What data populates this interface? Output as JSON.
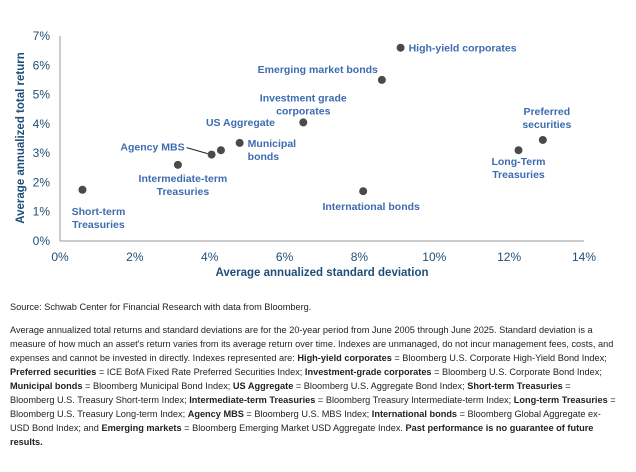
{
  "chart_data": {
    "type": "scatter",
    "xlabel": "Average annualized standard deviation",
    "ylabel": "Average annualized total return",
    "xlim": [
      0,
      14
    ],
    "ylim": [
      0,
      7
    ],
    "x_ticks": [
      "0%",
      "2%",
      "4%",
      "6%",
      "8%",
      "10%",
      "12%",
      "14%"
    ],
    "y_ticks": [
      "0%",
      "1%",
      "2%",
      "3%",
      "4%",
      "5%",
      "6%",
      "7%"
    ],
    "grid": false,
    "point_color": "#4a4a4a",
    "label_color": "#3d6cb0",
    "points": [
      {
        "label": [
          "High-yield corporates"
        ],
        "x": 9.1,
        "y": 6.6
      },
      {
        "label": [
          "Emerging market bonds"
        ],
        "x": 8.6,
        "y": 5.5
      },
      {
        "label": [
          "Investment grade",
          "corporates"
        ],
        "x": 6.5,
        "y": 4.05
      },
      {
        "label": [
          "US Aggregate"
        ],
        "x": 4.3,
        "y": 3.1
      },
      {
        "label": [
          "Municipal",
          "bonds"
        ],
        "x": 4.8,
        "y": 3.35
      },
      {
        "label": [
          "Agency MBS"
        ],
        "x": 4.05,
        "y": 2.95
      },
      {
        "label": [
          "Intermediate-term",
          "Treasuries"
        ],
        "x": 3.15,
        "y": 2.6
      },
      {
        "label": [
          "Short-term",
          "Treasuries"
        ],
        "x": 0.6,
        "y": 1.75
      },
      {
        "label": [
          "International bonds"
        ],
        "x": 8.1,
        "y": 1.7
      },
      {
        "label": [
          "Preferred",
          "securities"
        ],
        "x": 12.9,
        "y": 3.45
      },
      {
        "label": [
          "Long-Term",
          "Treasuries"
        ],
        "x": 12.25,
        "y": 3.1
      }
    ]
  },
  "footer": {
    "source": "Source: Schwab Center for Financial Research with data from Bloomberg.",
    "notes": [
      {
        "t": "Average annualized total returns and standard deviations are for the 20-year period from June 2005 through June 2025. Standard deviation is a measure of how much an asset's return varies from its average return over time. Indexes are unmanaged, do not incur management fees, costs, and expenses and cannot be invested in directly. Indexes represented are: ",
        "b": false
      },
      {
        "t": "High-yield corporates",
        "b": true
      },
      {
        "t": " = Bloomberg U.S. Corporate High-Yield Bond Index; ",
        "b": false
      },
      {
        "t": "Preferred securities",
        "b": true
      },
      {
        "t": " = ICE BofA Fixed Rate Preferred Securities Index; ",
        "b": false
      },
      {
        "t": "Investment-grade corporates",
        "b": true
      },
      {
        "t": " = Bloomberg U.S. Corporate Bond Index; ",
        "b": false
      },
      {
        "t": "Municipal bonds",
        "b": true
      },
      {
        "t": " = Bloomberg Municipal Bond Index; ",
        "b": false
      },
      {
        "t": "US Aggregate",
        "b": true
      },
      {
        "t": " = Bloomberg U.S. Aggregate Bond Index; ",
        "b": false
      },
      {
        "t": "Short-term Treasuries",
        "b": true
      },
      {
        "t": " = Bloomberg U.S. Treasury Short-term Index; ",
        "b": false
      },
      {
        "t": "Intermediate-term Treasuries",
        "b": true
      },
      {
        "t": " = Bloomberg Treasury Intermediate-term Index; ",
        "b": false
      },
      {
        "t": "Long-term Treasuries",
        "b": true
      },
      {
        "t": " = Bloomberg U.S. Treasury Long-term Index; ",
        "b": false
      },
      {
        "t": "Agency MBS",
        "b": true
      },
      {
        "t": " = Bloomberg U.S. MBS Index; ",
        "b": false
      },
      {
        "t": "International bonds",
        "b": true
      },
      {
        "t": " = Bloomberg Global Aggregate ex-USD Bond Index; and ",
        "b": false
      },
      {
        "t": "Emerging markets",
        "b": true
      },
      {
        "t": " = Bloomberg Emerging Market USD Aggregate Index. ",
        "b": false
      },
      {
        "t": "Past performance is no guarantee of future results.",
        "b": true
      }
    ]
  }
}
